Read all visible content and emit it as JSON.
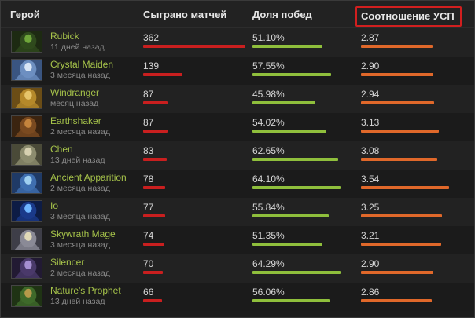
{
  "columns": {
    "hero": "Герой",
    "played": "Сыграно матчей",
    "winrate": "Доля побед",
    "kda": "Соотношение УСП"
  },
  "colors": {
    "hero_name": "#a6c34a",
    "played_bar": "#c91f1f",
    "win_bar": "#8fbf3c",
    "kda_bar": "#e0682a",
    "highlight_border": "#d21f1f"
  },
  "bar_scale": {
    "played_max": 362,
    "win_max": 0.6429,
    "kda_max": 3.54
  },
  "heroes": [
    {
      "name": "Rubick",
      "last_played": "11 дней назад",
      "played": "362",
      "played_num": 362,
      "winrate": "51.10%",
      "win_num": 0.511,
      "kda": "2.87",
      "kda_num": 2.87,
      "portrait_colors": [
        "#2f4a1d",
        "#6fa63a",
        "#1d2a12"
      ]
    },
    {
      "name": "Crystal Maiden",
      "last_played": "3 месяца назад",
      "played": "139",
      "played_num": 139,
      "winrate": "57.55%",
      "win_num": 0.5755,
      "kda": "2.90",
      "kda_num": 2.9,
      "portrait_colors": [
        "#6d8fc0",
        "#d9e6f5",
        "#3a5581"
      ]
    },
    {
      "name": "Windranger",
      "last_played": "месяц назад",
      "played": "87",
      "played_num": 87,
      "winrate": "45.98%",
      "win_num": 0.4598,
      "kda": "2.94",
      "kda_num": 2.94,
      "portrait_colors": [
        "#b5892a",
        "#e6c56a",
        "#6b4d16"
      ]
    },
    {
      "name": "Earthshaker",
      "last_played": "2 месяца назад",
      "played": "87",
      "played_num": 87,
      "winrate": "54.02%",
      "win_num": 0.5402,
      "kda": "3.13",
      "kda_num": 3.13,
      "portrait_colors": [
        "#7a4a20",
        "#c4843d",
        "#3b2410"
      ]
    },
    {
      "name": "Chen",
      "last_played": "13 дней назад",
      "played": "83",
      "played_num": 83,
      "winrate": "62.65%",
      "win_num": 0.6265,
      "kda": "3.08",
      "kda_num": 3.08,
      "portrait_colors": [
        "#8c8c6e",
        "#d6d0b0",
        "#4a4a38"
      ]
    },
    {
      "name": "Ancient Apparition",
      "last_played": "2 месяца назад",
      "played": "78",
      "played_num": 78,
      "winrate": "64.10%",
      "win_num": 0.641,
      "kda": "3.54",
      "kda_num": 3.54,
      "portrait_colors": [
        "#3f6fb0",
        "#9fd0f0",
        "#1f3a66"
      ]
    },
    {
      "name": "Io",
      "last_played": "3 месяца назад",
      "played": "77",
      "played_num": 77,
      "winrate": "55.84%",
      "win_num": 0.5584,
      "kda": "3.25",
      "kda_num": 3.25,
      "portrait_colors": [
        "#1a3a8a",
        "#6fb6ff",
        "#0d1c45"
      ]
    },
    {
      "name": "Skywrath Mage",
      "last_played": "3 месяца назад",
      "played": "74",
      "played_num": 74,
      "winrate": "51.35%",
      "win_num": 0.5135,
      "kda": "3.21",
      "kda_num": 3.21,
      "portrait_colors": [
        "#8a8a96",
        "#e0d9b8",
        "#3e3e48"
      ]
    },
    {
      "name": "Silencer",
      "last_played": "2 месяца назад",
      "played": "70",
      "played_num": 70,
      "winrate": "64.29%",
      "win_num": 0.6429,
      "kda": "2.90",
      "kda_num": 2.9,
      "portrait_colors": [
        "#4a3a6a",
        "#a58fd0",
        "#221a33"
      ]
    },
    {
      "name": "Nature's Prophet",
      "last_played": "13 дней назад",
      "played": "66",
      "played_num": 66,
      "winrate": "56.06%",
      "win_num": 0.5606,
      "kda": "2.86",
      "kda_num": 2.86,
      "portrait_colors": [
        "#3f6a2a",
        "#b59a4a",
        "#1f3314"
      ]
    }
  ]
}
